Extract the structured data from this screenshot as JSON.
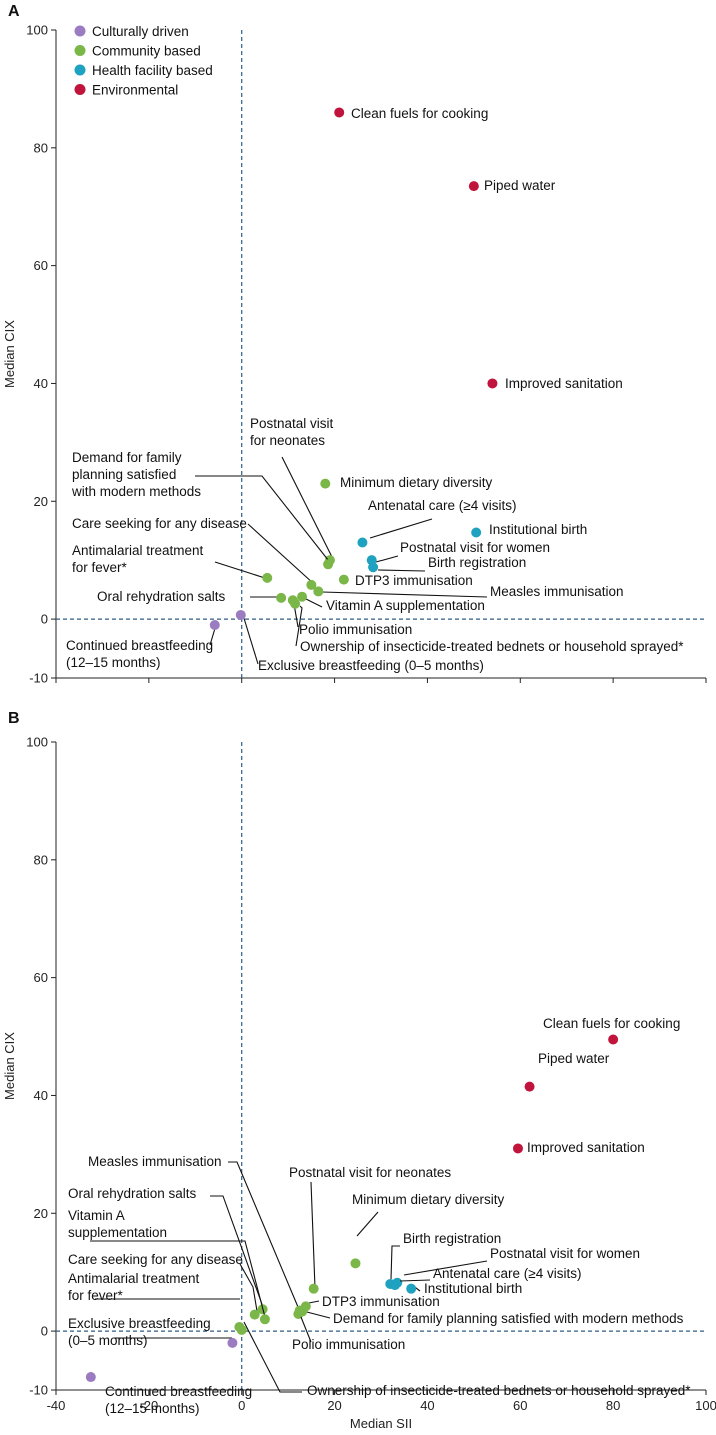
{
  "chart_data": [
    {
      "panel": "A",
      "type": "scatter",
      "xlabel": "",
      "ylabel": "Median CIX",
      "xlim": [
        -40,
        100
      ],
      "ylim": [
        -10,
        100
      ],
      "yticks": [
        -10,
        0,
        20,
        40,
        60,
        80,
        100
      ],
      "xticks": [],
      "legend": {
        "placement": "top-left",
        "entries": [
          {
            "name": "Culturally driven",
            "color": "#9b7cc0"
          },
          {
            "name": "Community based",
            "color": "#7ab648"
          },
          {
            "name": "Health facility based",
            "color": "#1fa2c0"
          },
          {
            "name": "Environmental",
            "color": "#c0143c"
          }
        ]
      },
      "points": [
        {
          "x": 21,
          "y": 86,
          "group": "Environmental",
          "label": [
            "Clean fuels for cooking"
          ]
        },
        {
          "x": 50,
          "y": 73.5,
          "group": "Environmental",
          "label": [
            "Piped water"
          ]
        },
        {
          "x": 54,
          "y": 40,
          "group": "Environmental",
          "label": [
            "Improved sanitation"
          ]
        },
        {
          "x": 18,
          "y": 23,
          "group": "Community based",
          "label": [
            "Minimum dietary diversity"
          ]
        },
        {
          "x": 26,
          "y": 13,
          "group": "Health facility based",
          "label": [
            "Antenatal care (≥4 visits)"
          ]
        },
        {
          "x": 50.5,
          "y": 14.7,
          "group": "Health facility based",
          "label": [
            "Institutional birth"
          ]
        },
        {
          "x": 28,
          "y": 10,
          "group": "Health facility based",
          "label": [
            "Postnatal visit for women"
          ]
        },
        {
          "x": 28.3,
          "y": 8.8,
          "group": "Health facility based",
          "label": [
            "Birth registration"
          ]
        },
        {
          "x": 19,
          "y": 10,
          "group": "Community based",
          "label": [
            "Postnatal visit",
            "for neonates"
          ]
        },
        {
          "x": 18.6,
          "y": 9.3,
          "group": "Community based",
          "label": [
            "Demand for family",
            "planning satisfied",
            "with modern methods"
          ]
        },
        {
          "x": 22,
          "y": 6.7,
          "group": "Community based",
          "label": [
            "DTP3 immunisation"
          ]
        },
        {
          "x": 15,
          "y": 5.8,
          "group": "Community based",
          "label": [
            "Care seeking for any disease"
          ]
        },
        {
          "x": 5.5,
          "y": 7,
          "group": "Community based",
          "label": [
            "Antimalarial treatment",
            "for fever*"
          ]
        },
        {
          "x": 16.5,
          "y": 4.7,
          "group": "Community based",
          "label": [
            "Measles immunisation"
          ]
        },
        {
          "x": 8.5,
          "y": 3.6,
          "group": "Community based",
          "label": [
            "Oral rehydration salts"
          ]
        },
        {
          "x": 13,
          "y": 3.8,
          "group": "Community based",
          "label": [
            "Vitamin A supplementation"
          ]
        },
        {
          "x": 11,
          "y": 3.2,
          "group": "Community based",
          "label": [
            "Polio immunisation"
          ]
        },
        {
          "x": 11.5,
          "y": 2.6,
          "group": "Community based",
          "label": [
            "Ownership of insecticide-treated bednets or household sprayed*"
          ]
        },
        {
          "x": -0.2,
          "y": 0.7,
          "group": "Culturally driven",
          "label": [
            "Exclusive breastfeeding (0–5 months)"
          ]
        },
        {
          "x": -5.8,
          "y": -1,
          "group": "Culturally driven",
          "label": [
            "Continued breastfeeding",
            "(12–15 months)"
          ]
        }
      ]
    },
    {
      "panel": "B",
      "type": "scatter",
      "xlabel": "Median SII",
      "ylabel": "Median CIX",
      "xlim": [
        -40,
        100
      ],
      "ylim": [
        -10,
        100
      ],
      "yticks": [
        -10,
        0,
        20,
        40,
        60,
        80,
        100
      ],
      "xticks": [
        -40,
        -20,
        0,
        20,
        40,
        60,
        80,
        100
      ],
      "points": [
        {
          "x": 80,
          "y": 49.5,
          "group": "Environmental",
          "label": [
            "Clean fuels for cooking"
          ]
        },
        {
          "x": 62,
          "y": 41.5,
          "group": "Environmental",
          "label": [
            "Piped water"
          ]
        },
        {
          "x": 59.5,
          "y": 31,
          "group": "Environmental",
          "label": [
            "Improved sanitation"
          ]
        },
        {
          "x": 24.5,
          "y": 11.5,
          "group": "Community based",
          "label": [
            "Minimum dietary diversity"
          ]
        },
        {
          "x": 32,
          "y": 8,
          "group": "Health facility based",
          "label": [
            "Birth registration"
          ]
        },
        {
          "x": 33.5,
          "y": 8.2,
          "group": "Health facility based",
          "label": [
            "Postnatal visit for women"
          ]
        },
        {
          "x": 33,
          "y": 7.8,
          "group": "Health facility based",
          "label": [
            "Antenatal care (≥4 visits)"
          ]
        },
        {
          "x": 36.5,
          "y": 7.2,
          "group": "Health facility based",
          "label": [
            "Institutional birth"
          ]
        },
        {
          "x": 15.5,
          "y": 7.2,
          "group": "Community based",
          "label": [
            "Postnatal visit for neonates"
          ]
        },
        {
          "x": 13.8,
          "y": 4.2,
          "group": "Community based",
          "label": [
            "DTP3 immunisation"
          ]
        },
        {
          "x": 12.5,
          "y": 3.5,
          "group": "Community based",
          "label": [
            "Measles immunisation"
          ]
        },
        {
          "x": 12.2,
          "y": 2.9,
          "group": "Community based",
          "label": [
            "Demand for family planning satisfied with modern methods"
          ]
        },
        {
          "x": 13,
          "y": 3.3,
          "group": "Community based",
          "label": [
            "Polio immunisation"
          ]
        },
        {
          "x": 4.5,
          "y": 3.7,
          "group": "Community based",
          "label": [
            "Oral rehydration salts"
          ]
        },
        {
          "x": 5,
          "y": 2,
          "group": "Community based",
          "label": [
            "Vitamin A",
            "supplementation"
          ]
        },
        {
          "x": 2.8,
          "y": 2.8,
          "group": "Community based",
          "label": [
            "Care seeking for any disease"
          ]
        },
        {
          "x": -0.5,
          "y": 0.7,
          "group": "Community based",
          "label": [
            "Antimalarial treatment",
            "for fever*"
          ]
        },
        {
          "x": 0,
          "y": 0.2,
          "group": "Community based",
          "label": [
            "Ownership of insecticide-treated bednets or household sprayed*"
          ]
        },
        {
          "x": -2,
          "y": -2,
          "group": "Culturally driven",
          "label": [
            "Exclusive breastfeeding",
            "(0–5 months)"
          ]
        },
        {
          "x": -32.5,
          "y": -7.8,
          "group": "Culturally driven",
          "label": [
            "Continued breastfeeding",
            "(12–15 months)"
          ]
        }
      ]
    }
  ]
}
